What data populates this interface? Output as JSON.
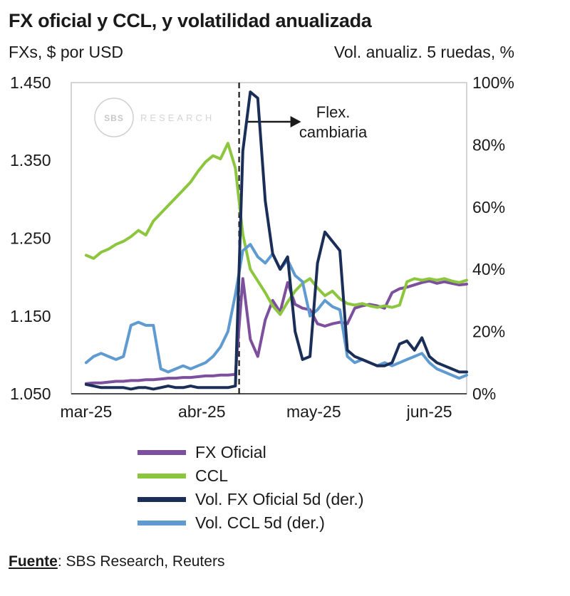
{
  "header": {
    "title": "FX oficial y CCL, y volatilidad anualizada",
    "left_axis_title": "FXs, $ por USD",
    "right_axis_title": "Vol. anualiz. 5 ruedas, %"
  },
  "watermark": {
    "circle_text": "SBS",
    "side_text": "RESEARCH"
  },
  "footer": {
    "source_label": "Fuente",
    "source_rest": ": SBS Research, Reuters"
  },
  "colors": {
    "text": "#1a1a1a",
    "plot_border": "#c6c6c6",
    "axis_line": "#4d4d4d",
    "annotation": "#1a1a1a",
    "purple": "#7d509e",
    "green": "#8cc63e",
    "navy": "#1b2e57",
    "lightblue": "#5f9bd1"
  },
  "legend": {
    "items": [
      {
        "label": "FX Oficial",
        "color": "#7d509e"
      },
      {
        "label": "CCL",
        "color": "#8cc63e"
      },
      {
        "label": "Vol. FX Oficial 5d (der.)",
        "color": "#1b2e57"
      },
      {
        "label": "Vol. CCL 5d (der.)",
        "color": "#5f9bd1"
      }
    ]
  },
  "chart_data": {
    "type": "line",
    "title": "FX oficial y CCL, y volatilidad anualizada",
    "x_unit": "days_from_2025-03-01",
    "x_domain": [
      -4,
      102
    ],
    "x_ticks": [
      {
        "day": 0,
        "label": "mar-25"
      },
      {
        "day": 31,
        "label": "abr-25"
      },
      {
        "day": 61,
        "label": "may-25"
      },
      {
        "day": 92,
        "label": "jun-25"
      }
    ],
    "left_axis": {
      "label": "FXs, $ por USD",
      "min": 1.05,
      "max": 1.45,
      "ticks": [
        {
          "value": 1.45,
          "label": "1.450"
        },
        {
          "value": 1.35,
          "label": "1.350"
        },
        {
          "value": 1.25,
          "label": "1.250"
        },
        {
          "value": 1.15,
          "label": "1.150"
        },
        {
          "value": 1.05,
          "label": "1.050"
        }
      ]
    },
    "right_axis": {
      "label": "Vol. anualiz. 5 ruedas, %",
      "min": 0,
      "max": 100,
      "ticks": [
        {
          "value": 100,
          "label": "100%"
        },
        {
          "value": 80,
          "label": "80%"
        },
        {
          "value": 60,
          "label": "60%"
        },
        {
          "value": 40,
          "label": "40%"
        },
        {
          "value": 20,
          "label": "20%"
        },
        {
          "value": 0,
          "label": "0%"
        }
      ]
    },
    "event_line": {
      "day": 41,
      "style": "dashed",
      "label": "Flex. cambiaria",
      "label_lines": [
        "Flex.",
        "cambiaria"
      ]
    },
    "x": [
      0,
      2,
      4,
      6,
      8,
      10,
      12,
      14,
      16,
      18,
      20,
      22,
      24,
      26,
      28,
      30,
      32,
      34,
      36,
      38,
      40,
      42,
      44,
      46,
      48,
      50,
      52,
      54,
      56,
      58,
      60,
      62,
      64,
      66,
      68,
      70,
      72,
      74,
      76,
      78,
      80,
      82,
      84,
      86,
      88,
      90,
      92,
      94,
      96,
      98,
      100,
      102
    ],
    "series": [
      {
        "name": "FX Oficial",
        "axis": "left",
        "color": "#7d509e",
        "values": [
          1.063,
          1.064,
          1.064,
          1.065,
          1.066,
          1.066,
          1.067,
          1.067,
          1.068,
          1.068,
          1.069,
          1.07,
          1.07,
          1.071,
          1.071,
          1.072,
          1.073,
          1.073,
          1.074,
          1.074,
          1.075,
          1.198,
          1.12,
          1.098,
          1.145,
          1.17,
          1.155,
          1.193,
          1.165,
          1.16,
          1.158,
          1.14,
          1.137,
          1.14,
          1.142,
          1.14,
          1.16,
          1.163,
          1.165,
          1.163,
          1.16,
          1.18,
          1.185,
          1.187,
          1.19,
          1.193,
          1.195,
          1.192,
          1.194,
          1.192,
          1.19,
          1.191
        ]
      },
      {
        "name": "CCL",
        "axis": "left",
        "color": "#8cc63e",
        "values": [
          1.228,
          1.224,
          1.232,
          1.236,
          1.242,
          1.246,
          1.252,
          1.26,
          1.254,
          1.272,
          1.282,
          1.292,
          1.302,
          1.312,
          1.322,
          1.336,
          1.348,
          1.356,
          1.352,
          1.372,
          1.34,
          1.255,
          1.21,
          1.195,
          1.18,
          1.163,
          1.152,
          1.168,
          1.182,
          1.192,
          1.198,
          1.186,
          1.176,
          1.182,
          1.172,
          1.166,
          1.164,
          1.166,
          1.163,
          1.161,
          1.163,
          1.161,
          1.164,
          1.194,
          1.198,
          1.196,
          1.198,
          1.196,
          1.198,
          1.195,
          1.193,
          1.196
        ]
      },
      {
        "name": "Vol. FX Oficial 5d (der.)",
        "axis": "right",
        "color": "#1b2e57",
        "values": [
          3,
          2.5,
          2,
          2,
          2,
          2,
          1.5,
          2,
          2,
          1.5,
          2,
          2.5,
          2,
          2,
          2.5,
          2,
          2,
          2,
          2,
          2,
          2.5,
          78,
          97,
          95,
          62,
          45,
          40,
          44,
          20,
          11,
          12,
          42,
          52,
          49,
          46,
          14,
          12,
          11,
          10,
          9,
          9,
          10,
          16,
          17,
          14,
          18,
          12,
          10,
          9,
          8,
          7,
          7
        ]
      },
      {
        "name": "Vol. CCL 5d (der.)",
        "axis": "right",
        "color": "#5f9bd1",
        "values": [
          10,
          12,
          13,
          12,
          11,
          12,
          22,
          23,
          22,
          22,
          8,
          7,
          8,
          9,
          8,
          9,
          10,
          12,
          15,
          20,
          32,
          46,
          48,
          44,
          42,
          45,
          40,
          43,
          38,
          36,
          25,
          27,
          30,
          28,
          27,
          12,
          10,
          11,
          10,
          9,
          10,
          9,
          10,
          11,
          12,
          13,
          10,
          8,
          7,
          6,
          5,
          6
        ]
      }
    ]
  }
}
